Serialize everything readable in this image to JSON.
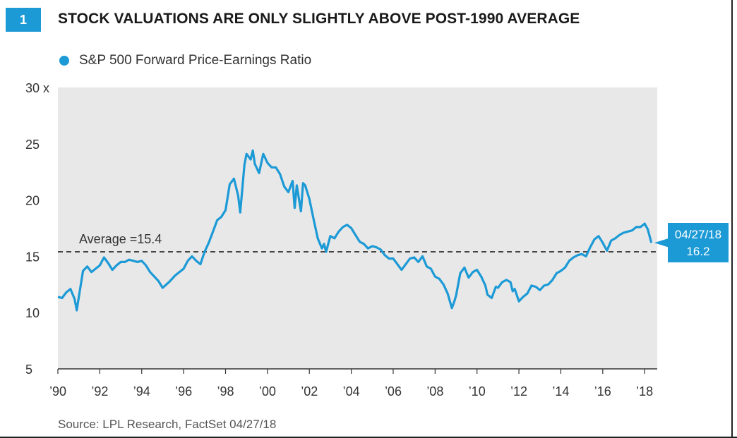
{
  "figure": {
    "number": "1",
    "title": "STOCK VALUATIONS ARE ONLY SLIGHTLY ABOVE POST-1990 AVERAGE",
    "source": "Source: LPL Research, FactSet   04/27/18"
  },
  "colors": {
    "accent": "#1c9ad6",
    "plot_background": "#e8e8e9",
    "average_line": "#444444"
  },
  "chart_data": {
    "type": "line",
    "title": "STOCK VALUATIONS ARE ONLY SLIGHTLY ABOVE POST-1990 AVERAGE",
    "xlabel": "",
    "ylabel": "",
    "ylim": [
      5,
      30
    ],
    "xlim": [
      1990,
      2018.6
    ],
    "grid": false,
    "legend_position": "top-left",
    "y_ticks": [
      5,
      10,
      15,
      20,
      25,
      30
    ],
    "y_tick_labels": [
      "5",
      "10",
      "15",
      "20",
      "25",
      "30 x"
    ],
    "x_ticks": [
      1990,
      1992,
      1994,
      1996,
      1998,
      2000,
      2002,
      2004,
      2006,
      2008,
      2010,
      2012,
      2014,
      2016,
      2018
    ],
    "x_tick_labels": [
      "’90",
      "’92",
      "’94",
      "’96",
      "’98",
      "’00",
      "’02",
      "’04",
      "’06",
      "’08",
      "’10",
      "’12",
      "’14",
      "’16",
      "’18"
    ],
    "series": [
      {
        "name": "S&P 500 Forward Price-Earnings Ratio",
        "color": "#1c9ad6",
        "x": [
          1990.0,
          1990.2,
          1990.4,
          1990.6,
          1990.8,
          1990.9,
          1991.0,
          1991.2,
          1991.4,
          1991.6,
          1991.8,
          1992.0,
          1992.2,
          1992.4,
          1992.6,
          1992.8,
          1993.0,
          1993.2,
          1993.4,
          1993.6,
          1993.8,
          1994.0,
          1994.2,
          1994.4,
          1994.6,
          1994.8,
          1995.0,
          1995.3,
          1995.6,
          1996.0,
          1996.2,
          1996.4,
          1996.6,
          1996.8,
          1997.0,
          1997.2,
          1997.4,
          1997.6,
          1997.8,
          1998.0,
          1998.2,
          1998.4,
          1998.6,
          1998.7,
          1998.9,
          1999.0,
          1999.2,
          1999.3,
          1999.4,
          1999.6,
          1999.8,
          2000.0,
          2000.2,
          2000.4,
          2000.6,
          2000.8,
          2001.0,
          2001.2,
          2001.3,
          2001.4,
          2001.6,
          2001.7,
          2001.8,
          2002.0,
          2002.2,
          2002.4,
          2002.6,
          2002.7,
          2002.8,
          2003.0,
          2003.2,
          2003.4,
          2003.6,
          2003.8,
          2004.0,
          2004.2,
          2004.4,
          2004.6,
          2004.8,
          2005.0,
          2005.2,
          2005.4,
          2005.6,
          2005.8,
          2006.0,
          2006.2,
          2006.4,
          2006.6,
          2006.8,
          2007.0,
          2007.2,
          2007.4,
          2007.6,
          2007.8,
          2008.0,
          2008.2,
          2008.4,
          2008.6,
          2008.8,
          2008.9,
          2009.0,
          2009.2,
          2009.4,
          2009.6,
          2009.8,
          2010.0,
          2010.2,
          2010.4,
          2010.5,
          2010.7,
          2010.9,
          2011.0,
          2011.2,
          2011.4,
          2011.6,
          2011.7,
          2011.8,
          2012.0,
          2012.2,
          2012.4,
          2012.6,
          2012.8,
          2013.0,
          2013.2,
          2013.4,
          2013.6,
          2013.8,
          2014.0,
          2014.2,
          2014.4,
          2014.6,
          2014.8,
          2015.0,
          2015.2,
          2015.4,
          2015.6,
          2015.8,
          2016.0,
          2016.2,
          2016.4,
          2016.6,
          2016.8,
          2017.0,
          2017.2,
          2017.4,
          2017.6,
          2017.8,
          2018.0,
          2018.15,
          2018.32
        ],
        "values": [
          11.4,
          11.3,
          11.8,
          12.1,
          11.2,
          10.2,
          11.4,
          13.7,
          14.1,
          13.6,
          13.9,
          14.2,
          14.9,
          14.4,
          13.8,
          14.2,
          14.5,
          14.5,
          14.7,
          14.6,
          14.5,
          14.6,
          14.2,
          13.6,
          13.2,
          12.8,
          12.2,
          12.7,
          13.3,
          13.9,
          14.6,
          15.0,
          14.6,
          14.3,
          15.4,
          16.2,
          17.2,
          18.2,
          18.5,
          19.1,
          21.4,
          21.9,
          20.4,
          18.9,
          23.1,
          24.1,
          23.6,
          24.4,
          23.2,
          22.4,
          24.1,
          23.3,
          22.9,
          22.9,
          22.3,
          21.2,
          20.7,
          21.7,
          19.3,
          21.3,
          19.0,
          21.5,
          21.3,
          20.1,
          18.3,
          16.6,
          15.7,
          16.1,
          15.4,
          16.8,
          16.6,
          17.2,
          17.6,
          17.8,
          17.5,
          16.9,
          16.3,
          16.1,
          15.7,
          15.9,
          15.8,
          15.6,
          15.1,
          14.8,
          14.8,
          14.3,
          13.8,
          14.3,
          14.8,
          14.9,
          14.5,
          15.0,
          14.1,
          13.9,
          13.2,
          13.0,
          12.5,
          11.7,
          10.4,
          10.9,
          11.5,
          13.5,
          14.0,
          13.1,
          13.6,
          13.8,
          13.2,
          12.4,
          11.6,
          11.3,
          12.3,
          12.2,
          12.7,
          12.9,
          12.7,
          11.9,
          12.1,
          11.0,
          11.4,
          11.7,
          12.4,
          12.3,
          12.0,
          12.4,
          12.5,
          12.9,
          13.5,
          13.7,
          14.0,
          14.6,
          14.9,
          15.1,
          15.2,
          15.0,
          15.8,
          16.5,
          16.8,
          16.2,
          15.5,
          16.4,
          16.6,
          16.9,
          17.1,
          17.2,
          17.3,
          17.6,
          17.6,
          17.9,
          17.4,
          16.2
        ]
      }
    ],
    "reference_line": {
      "label": "Average =15.4",
      "value": 15.4
    },
    "callout": {
      "date": "04/27/18",
      "value": "16.2"
    }
  }
}
